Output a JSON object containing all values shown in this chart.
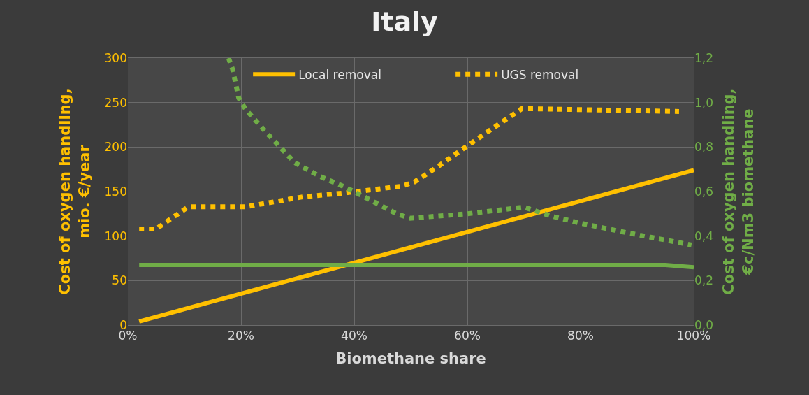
{
  "chart_data": {
    "type": "line",
    "title": "Italy",
    "xlabel": "Biomethane share",
    "ylabel": "Cost of oxygen handling, mio. €/year",
    "y2label": "Cost of oxygen handling, €c/Nm3 biomethane",
    "series": [
      {
        "name": "Local removal",
        "color": "#ffc000",
        "line_style": "solid",
        "x": [
          2,
          40,
          70,
          100
        ],
        "values": [
          4,
          70,
          122,
          174
        ]
      },
      {
        "name": "UGS removal",
        "color": "#ffc000",
        "line_style": "dotted",
        "x": [
          2,
          5,
          10.7,
          20.9,
          30.9,
          38.4,
          48.4,
          50.7,
          55,
          59,
          65.4,
          69.6,
          72,
          97.4
        ],
        "values": [
          108,
          108,
          133,
          133,
          144,
          148.5,
          156,
          161,
          179,
          197,
          225,
          243,
          243,
          240
        ]
      },
      {
        "color": "#70ad47",
        "line_style": "solid",
        "axis": "y2",
        "x": [
          2,
          95,
          100
        ],
        "values": [
          0.27,
          0.27,
          0.26
        ]
      },
      {
        "color": "#70ad47",
        "line_style": "dotted",
        "axis": "y2",
        "x": [
          17.8,
          18.5,
          19.6,
          20.8,
          24.3,
          29.5,
          33.8,
          38.4,
          43,
          47.5,
          49.9,
          59.9,
          70,
          74.8,
          79.6,
          87.2,
          99.6
        ],
        "values": [
          1.2,
          1.15,
          1.02,
          0.97,
          0.87,
          0.73,
          0.67,
          0.62,
          0.56,
          0.5,
          0.48,
          0.5,
          0.53,
          0.49,
          0.46,
          0.42,
          0.36
        ]
      }
    ],
    "xlim": [
      0,
      100
    ],
    "xticks": [
      {
        "value": 0,
        "label": "0%"
      },
      {
        "value": 20,
        "label": "20%"
      },
      {
        "value": 40,
        "label": "40%"
      },
      {
        "value": 60,
        "label": "60%"
      },
      {
        "value": 80,
        "label": "80%"
      },
      {
        "value": 100,
        "label": "100%"
      }
    ],
    "ylim": [
      0,
      300
    ],
    "yticks": [
      0,
      50,
      100,
      150,
      200,
      250,
      300
    ],
    "y2lim": [
      0,
      1.2
    ],
    "y2ticks": [
      {
        "value": 0,
        "label": "0,0"
      },
      {
        "value": 0.2,
        "label": "0,2"
      },
      {
        "value": 0.4,
        "label": "0,4"
      },
      {
        "value": 0.6,
        "label": "0,6"
      },
      {
        "value": 0.8,
        "label": "0,8"
      },
      {
        "value": 1.0,
        "label": "1,0"
      },
      {
        "value": 1.2,
        "label": "1,2"
      }
    ],
    "grid": true,
    "legend": "top"
  }
}
